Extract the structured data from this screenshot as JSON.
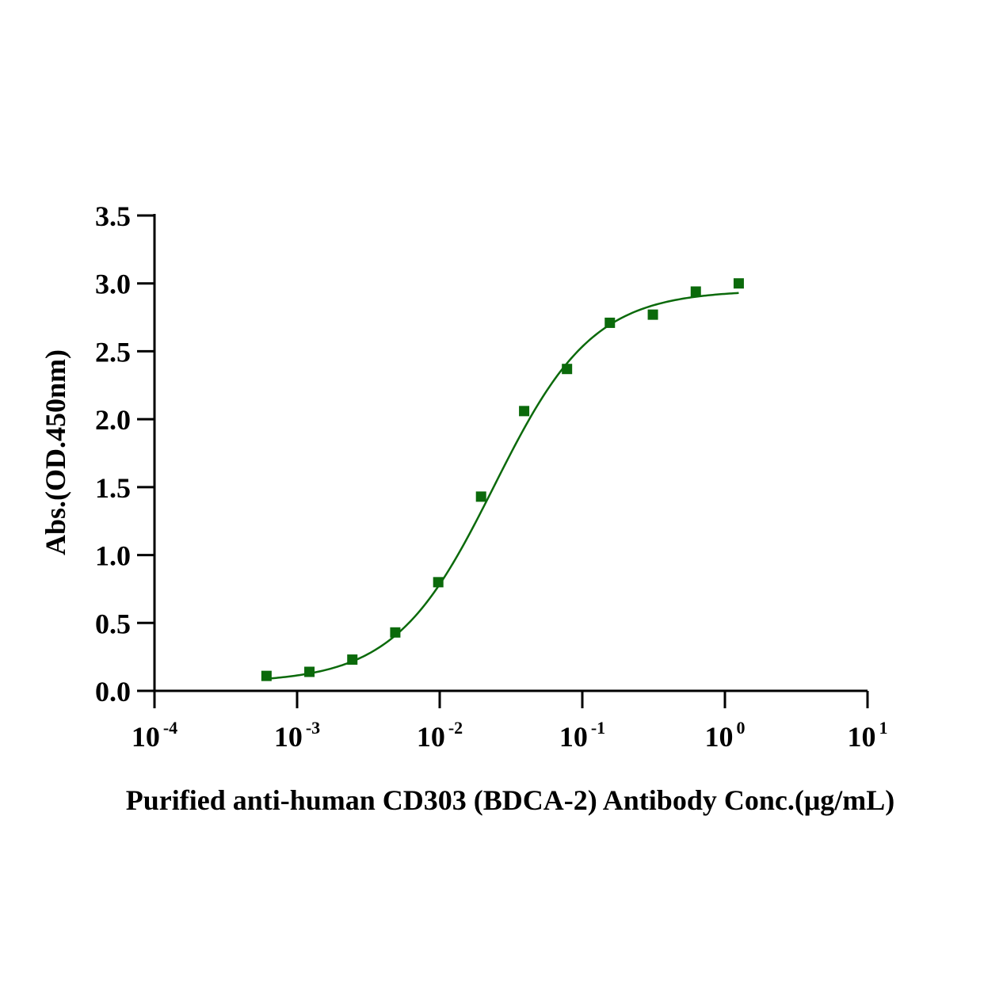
{
  "chart_data": {
    "type": "scatter",
    "xlabel": "Purified anti-human CD303 (BDCA-2) Antibody  Conc.(μg/mL)",
    "ylabel": "Abs.(OD.450nm)",
    "x_scale": "log",
    "xlim": [
      0.0001,
      10
    ],
    "ylim": [
      0,
      3.5
    ],
    "x_ticks": [
      {
        "base": "10",
        "exp": "-4"
      },
      {
        "base": "10",
        "exp": "-3"
      },
      {
        "base": "10",
        "exp": "-2"
      },
      {
        "base": "10",
        "exp": "-1"
      },
      {
        "base": "10",
        "exp": "0"
      },
      {
        "base": "10",
        "exp": "1"
      }
    ],
    "y_ticks": [
      "0.0",
      "0.5",
      "1.0",
      "1.5",
      "2.0",
      "2.5",
      "3.0",
      "3.5"
    ],
    "grid": false,
    "color": "#0b6a0b",
    "series": [
      {
        "marker": "square",
        "x": [
          0.00061,
          0.00122,
          0.00244,
          0.00488,
          0.00977,
          0.0195,
          0.0391,
          0.0781,
          0.156,
          0.3125,
          0.625,
          1.25
        ],
        "y": [
          0.11,
          0.14,
          0.23,
          0.43,
          0.8,
          1.43,
          2.06,
          2.37,
          2.71,
          2.77,
          2.94,
          3.0
        ]
      }
    ],
    "fit_curve": {
      "model": "4PL",
      "bottom": 0.06,
      "top": 2.95,
      "ec50": 0.024,
      "hill": 1.25,
      "x_range": [
        0.00061,
        1.25
      ]
    }
  }
}
